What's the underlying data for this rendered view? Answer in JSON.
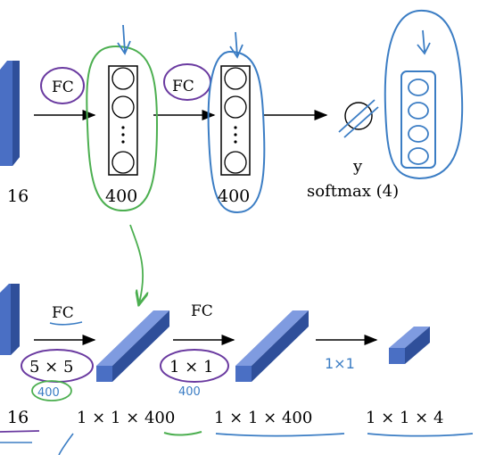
{
  "top_row": {
    "conv_depth_label": "16",
    "fc_label_1": "FC",
    "fc_label_2": "FC",
    "layer1_size": "400",
    "layer2_size": "400",
    "output_symbol": "y",
    "output_label": "softmax (4)"
  },
  "bottom_row": {
    "conv_depth_label": "16",
    "fc_label_1": "FC",
    "fc_label_2": "FC",
    "filter1_label": "5 × 5",
    "filter1_note": "400",
    "filter2_label": "1 × 1",
    "filter2_note": "400",
    "filter3_note": "1×1",
    "vol1_label": "1 × 1 × 400",
    "vol2_label": "1 × 1 × 400",
    "vol3_label": "1 × 1 × 4"
  },
  "colors": {
    "block_front": "#4a6fc4",
    "block_top": "#7f9be0",
    "block_side": "#2f4f9a",
    "green_ink": "#4caf50",
    "blue_ink": "#3b7dc4",
    "purple_ink": "#6a3aa0"
  }
}
